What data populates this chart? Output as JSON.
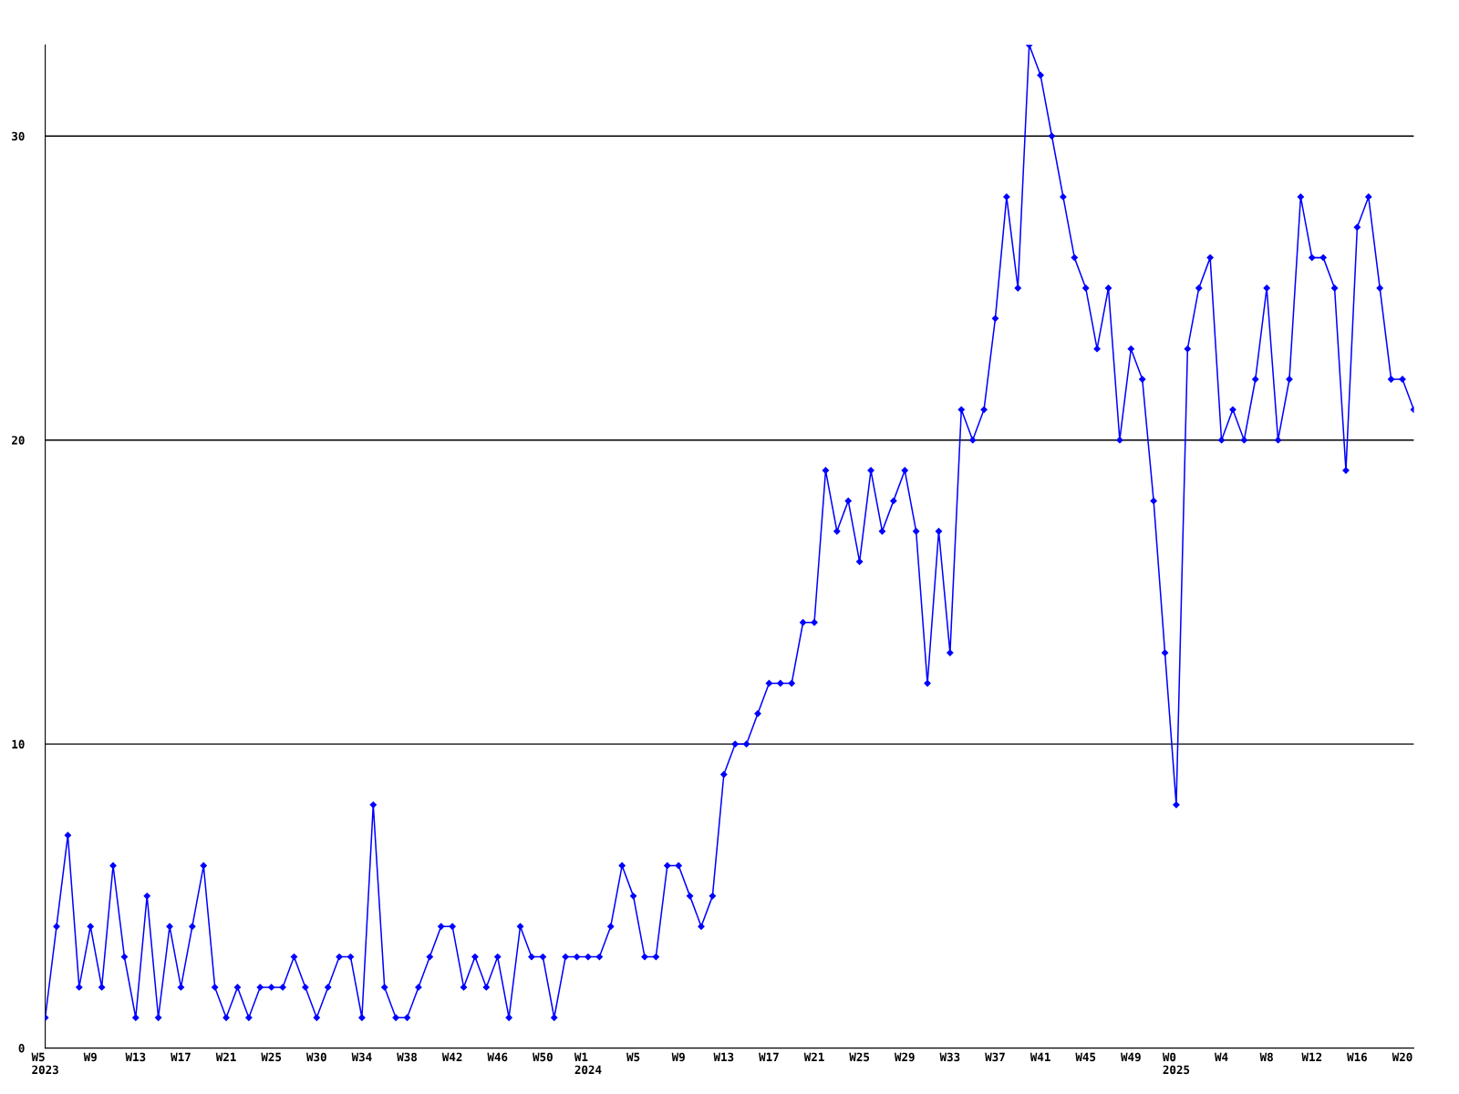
{
  "chart_data": {
    "type": "line",
    "categories": [
      "W5\n2023",
      null,
      null,
      null,
      "W9",
      null,
      null,
      null,
      "W13",
      null,
      null,
      null,
      "W17",
      null,
      null,
      null,
      "W21",
      null,
      null,
      null,
      "W25",
      null,
      null,
      null,
      "W30",
      null,
      null,
      null,
      "W34",
      null,
      null,
      null,
      "W38",
      null,
      null,
      null,
      "W42",
      null,
      null,
      null,
      "W46",
      null,
      null,
      null,
      "W50",
      null,
      null,
      null,
      "W1\n2024",
      null,
      null,
      null,
      "W5",
      null,
      null,
      null,
      "W9",
      null,
      null,
      null,
      "W13",
      null,
      null,
      null,
      "W17",
      null,
      null,
      null,
      "W21",
      null,
      null,
      null,
      "W25",
      null,
      null,
      null,
      "W29",
      null,
      null,
      null,
      "W33",
      null,
      null,
      null,
      "W37",
      null,
      null,
      null,
      "W41",
      null,
      null,
      null,
      "W45",
      null,
      null,
      null,
      "W49",
      null,
      null,
      null,
      "W0\n2025",
      null,
      null,
      null,
      "W4",
      null,
      null,
      null,
      "W8",
      null,
      null,
      null,
      "W12",
      null,
      null,
      null,
      "W16",
      null,
      null,
      null,
      "W20",
      null
    ],
    "series": [
      {
        "color": "#0000ff",
        "values": [
          1,
          4,
          7,
          2,
          4,
          2,
          6,
          3,
          1,
          5,
          1,
          4,
          2,
          4,
          6,
          2,
          1,
          2,
          1,
          2,
          2,
          2,
          3,
          2,
          1,
          2,
          3,
          3,
          1,
          8,
          2,
          1,
          1,
          2,
          3,
          4,
          4,
          2,
          3,
          2,
          3,
          1,
          4,
          3,
          3,
          1,
          3,
          3,
          3,
          3,
          4,
          6,
          5,
          3,
          3,
          6,
          6,
          5,
          4,
          5,
          9,
          10,
          10,
          11,
          12,
          12,
          12,
          14,
          14,
          19,
          17,
          18,
          16,
          19,
          17,
          18,
          19,
          17,
          12,
          17,
          13,
          21,
          20,
          21,
          24,
          28,
          25,
          33,
          32,
          30,
          28,
          26,
          25,
          23,
          25,
          20,
          23,
          22,
          18,
          13,
          8,
          23,
          25,
          26,
          20,
          21,
          20,
          22,
          25,
          20,
          22,
          28,
          26,
          26,
          25,
          19,
          27,
          28,
          25,
          22,
          22,
          21
        ]
      }
    ],
    "ylim": [
      0,
      33
    ],
    "yticks": [
      0,
      10,
      20,
      30
    ],
    "grid": "y",
    "marker": "diamond",
    "line_style": "solid"
  }
}
